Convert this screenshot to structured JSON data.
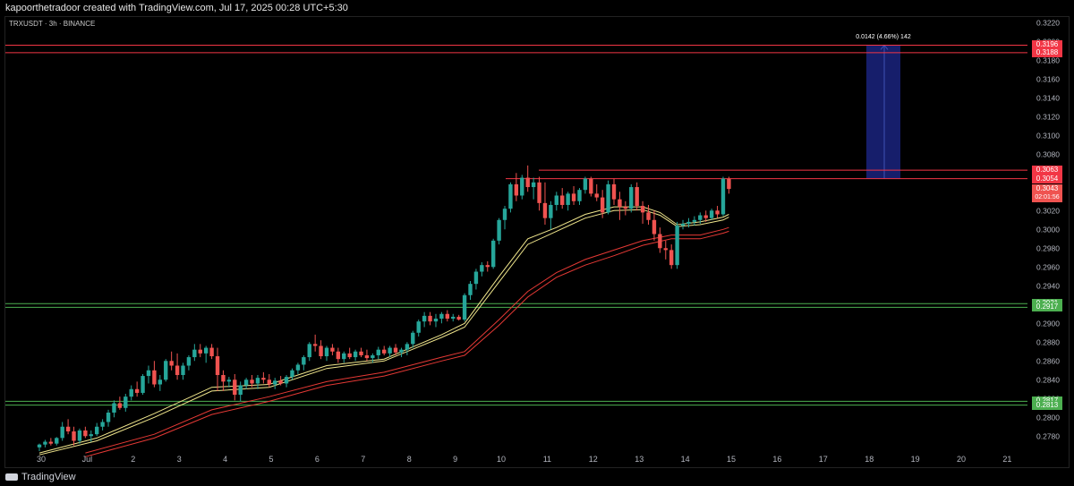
{
  "header": {
    "text": "kapoorthetradoor created with TradingView.com, Jul 17, 2025 00:28 UTC+5:30"
  },
  "symbol": {
    "text": "TRXUSDT · 3h · BINANCE"
  },
  "footer": {
    "logo_text": "TradingView"
  },
  "colors": {
    "up": "#26a69a",
    "down": "#ef5350",
    "resistance": "#f23645",
    "support": "#4caf50",
    "ema_fast": "#f0e68c",
    "ema_slow": "#e53935",
    "measure_fill": "#1a237e",
    "measure_line": "#3f51b5"
  },
  "chart_data": {
    "type": "candlestick",
    "title": "TRXUSDT · 3h · BINANCE",
    "ylim": [
      0.2765,
      0.3226
    ],
    "y_ticks": [
      "0.3220",
      "0.3200",
      "0.3180",
      "0.3160",
      "0.3140",
      "0.3120",
      "0.3100",
      "0.3080",
      "0.3060",
      "0.3040",
      "0.3020",
      "0.3000",
      "0.2980",
      "0.2960",
      "0.2940",
      "0.2920",
      "0.2900",
      "0.2880",
      "0.2860",
      "0.2840",
      "0.2820",
      "0.2800",
      "0.2780"
    ],
    "x_ticks": [
      "30",
      "Jul",
      "2",
      "3",
      "4",
      "5",
      "6",
      "7",
      "8",
      "9",
      "10",
      "11",
      "12",
      "13",
      "14",
      "15",
      "16",
      "17",
      "18",
      "19",
      "20",
      "21"
    ],
    "candles": [
      [
        0.2768,
        0.2772,
        0.2764,
        0.2771
      ],
      [
        0.2771,
        0.2776,
        0.2768,
        0.2774
      ],
      [
        0.2774,
        0.2778,
        0.277,
        0.2772
      ],
      [
        0.2772,
        0.2779,
        0.277,
        0.2778
      ],
      [
        0.2778,
        0.2795,
        0.2775,
        0.279
      ],
      [
        0.279,
        0.2798,
        0.2782,
        0.2785
      ],
      [
        0.2785,
        0.279,
        0.277,
        0.2775
      ],
      [
        0.2775,
        0.2788,
        0.2772,
        0.2786
      ],
      [
        0.2786,
        0.279,
        0.2778,
        0.278
      ],
      [
        0.278,
        0.2786,
        0.2774,
        0.2782
      ],
      [
        0.2782,
        0.2794,
        0.278,
        0.279
      ],
      [
        0.279,
        0.2798,
        0.2786,
        0.2795
      ],
      [
        0.2795,
        0.2808,
        0.279,
        0.2805
      ],
      [
        0.2805,
        0.2818,
        0.28,
        0.2815
      ],
      [
        0.2815,
        0.2822,
        0.2808,
        0.281
      ],
      [
        0.281,
        0.2825,
        0.2806,
        0.2822
      ],
      [
        0.2822,
        0.2834,
        0.2818,
        0.283
      ],
      [
        0.283,
        0.2838,
        0.2822,
        0.2826
      ],
      [
        0.2826,
        0.2846,
        0.2824,
        0.2844
      ],
      [
        0.2844,
        0.2855,
        0.2836,
        0.285
      ],
      [
        0.285,
        0.286,
        0.2832,
        0.2835
      ],
      [
        0.2835,
        0.2845,
        0.2828,
        0.284
      ],
      [
        0.284,
        0.2862,
        0.2838,
        0.286
      ],
      [
        0.286,
        0.287,
        0.285,
        0.2855
      ],
      [
        0.2855,
        0.2868,
        0.284,
        0.2845
      ],
      [
        0.2845,
        0.2858,
        0.284,
        0.2855
      ],
      [
        0.2855,
        0.2866,
        0.285,
        0.2864
      ],
      [
        0.2864,
        0.2878,
        0.286,
        0.2872
      ],
      [
        0.2872,
        0.2878,
        0.2864,
        0.2868
      ],
      [
        0.2868,
        0.2876,
        0.2858,
        0.2874
      ],
      [
        0.2874,
        0.2878,
        0.2862,
        0.2865
      ],
      [
        0.2865,
        0.2874,
        0.2828,
        0.2845
      ],
      [
        0.2845,
        0.285,
        0.2828,
        0.2838
      ],
      [
        0.2838,
        0.2843,
        0.2832,
        0.284
      ],
      [
        0.284,
        0.2846,
        0.2818,
        0.2824
      ],
      [
        0.2824,
        0.2838,
        0.2817,
        0.2834
      ],
      [
        0.2834,
        0.2842,
        0.283,
        0.284
      ],
      [
        0.284,
        0.2845,
        0.2832,
        0.2836
      ],
      [
        0.2836,
        0.2845,
        0.283,
        0.2842
      ],
      [
        0.2842,
        0.2848,
        0.2836,
        0.284
      ],
      [
        0.284,
        0.2846,
        0.2832,
        0.2835
      ],
      [
        0.2835,
        0.2842,
        0.283,
        0.2839
      ],
      [
        0.2839,
        0.2844,
        0.2834,
        0.2836
      ],
      [
        0.2836,
        0.2845,
        0.2832,
        0.2843
      ],
      [
        0.2843,
        0.2852,
        0.284,
        0.285
      ],
      [
        0.285,
        0.2858,
        0.2846,
        0.2856
      ],
      [
        0.2856,
        0.2866,
        0.285,
        0.2864
      ],
      [
        0.2864,
        0.288,
        0.286,
        0.2878
      ],
      [
        0.2878,
        0.2888,
        0.287,
        0.2876
      ],
      [
        0.2876,
        0.2882,
        0.2862,
        0.2865
      ],
      [
        0.2865,
        0.2876,
        0.286,
        0.2874
      ],
      [
        0.2874,
        0.2878,
        0.2866,
        0.287
      ],
      [
        0.287,
        0.2874,
        0.2858,
        0.2862
      ],
      [
        0.2862,
        0.287,
        0.2858,
        0.2868
      ],
      [
        0.2868,
        0.2874,
        0.2862,
        0.2864
      ],
      [
        0.2864,
        0.2872,
        0.286,
        0.287
      ],
      [
        0.287,
        0.2874,
        0.2864,
        0.2866
      ],
      [
        0.2866,
        0.2872,
        0.286,
        0.2863
      ],
      [
        0.2863,
        0.2868,
        0.2858,
        0.2866
      ],
      [
        0.2866,
        0.2875,
        0.2862,
        0.2872
      ],
      [
        0.2872,
        0.2876,
        0.2866,
        0.2868
      ],
      [
        0.2868,
        0.2876,
        0.2864,
        0.2874
      ],
      [
        0.2874,
        0.2878,
        0.2866,
        0.2869
      ],
      [
        0.2869,
        0.2874,
        0.2864,
        0.2872
      ],
      [
        0.2872,
        0.288,
        0.2866,
        0.2878
      ],
      [
        0.2878,
        0.2892,
        0.2874,
        0.289
      ],
      [
        0.289,
        0.2904,
        0.2886,
        0.2902
      ],
      [
        0.2902,
        0.2912,
        0.2896,
        0.2908
      ],
      [
        0.2908,
        0.2912,
        0.2898,
        0.2902
      ],
      [
        0.2902,
        0.291,
        0.2896,
        0.2905
      ],
      [
        0.2905,
        0.2912,
        0.29,
        0.291
      ],
      [
        0.291,
        0.2914,
        0.2902,
        0.2905
      ],
      [
        0.2905,
        0.291,
        0.2902,
        0.2907
      ],
      [
        0.2907,
        0.2909,
        0.2903,
        0.2904
      ],
      [
        0.2904,
        0.2932,
        0.2902,
        0.293
      ],
      [
        0.293,
        0.2945,
        0.2925,
        0.2942
      ],
      [
        0.2942,
        0.2958,
        0.2936,
        0.2955
      ],
      [
        0.2955,
        0.2965,
        0.295,
        0.2962
      ],
      [
        0.2962,
        0.2966,
        0.2955,
        0.296
      ],
      [
        0.296,
        0.299,
        0.2958,
        0.2988
      ],
      [
        0.2988,
        0.3012,
        0.2984,
        0.301
      ],
      [
        0.301,
        0.3025,
        0.3,
        0.3022
      ],
      [
        0.3022,
        0.305,
        0.3018,
        0.3048
      ],
      [
        0.3048,
        0.306,
        0.303,
        0.3036
      ],
      [
        0.3036,
        0.3058,
        0.3032,
        0.3055
      ],
      [
        0.3055,
        0.3068,
        0.304,
        0.3045
      ],
      [
        0.3045,
        0.3055,
        0.3032,
        0.305
      ],
      [
        0.305,
        0.3056,
        0.302,
        0.3028
      ],
      [
        0.3028,
        0.305,
        0.3005,
        0.3012
      ],
      [
        0.3012,
        0.303,
        0.3,
        0.3026
      ],
      [
        0.3026,
        0.304,
        0.302,
        0.3036
      ],
      [
        0.3036,
        0.3044,
        0.3022,
        0.3026
      ],
      [
        0.3026,
        0.304,
        0.302,
        0.3038
      ],
      [
        0.3038,
        0.3046,
        0.3026,
        0.303
      ],
      [
        0.303,
        0.3044,
        0.3026,
        0.3042
      ],
      [
        0.3042,
        0.3056,
        0.3038,
        0.3054
      ],
      [
        0.3054,
        0.3056,
        0.3035,
        0.3038
      ],
      [
        0.3038,
        0.3048,
        0.303,
        0.3034
      ],
      [
        0.3034,
        0.3042,
        0.3012,
        0.3018
      ],
      [
        0.3018,
        0.3052,
        0.3016,
        0.3048
      ],
      [
        0.3048,
        0.3054,
        0.3026,
        0.3032
      ],
      [
        0.3032,
        0.304,
        0.301,
        0.3024
      ],
      [
        0.3024,
        0.303,
        0.3015,
        0.3022
      ],
      [
        0.3022,
        0.3048,
        0.3018,
        0.3045
      ],
      [
        0.3045,
        0.305,
        0.302,
        0.3025
      ],
      [
        0.3025,
        0.303,
        0.3006,
        0.3018
      ],
      [
        0.3018,
        0.3026,
        0.3005,
        0.301
      ],
      [
        0.301,
        0.302,
        0.2988,
        0.2995
      ],
      [
        0.2995,
        0.3002,
        0.2975,
        0.298
      ],
      [
        0.298,
        0.2988,
        0.2968,
        0.2978
      ],
      [
        0.2978,
        0.2984,
        0.2958,
        0.2962
      ],
      [
        0.2962,
        0.3008,
        0.2958,
        0.3004
      ],
      [
        0.3004,
        0.301,
        0.3,
        0.3006
      ],
      [
        0.3006,
        0.3012,
        0.3002,
        0.3008
      ],
      [
        0.3008,
        0.3014,
        0.3004,
        0.301
      ],
      [
        0.301,
        0.3018,
        0.3006,
        0.3015
      ],
      [
        0.3015,
        0.302,
        0.3008,
        0.3012
      ],
      [
        0.3012,
        0.3022,
        0.301,
        0.302
      ],
      [
        0.302,
        0.3025,
        0.3012,
        0.3016
      ],
      [
        0.3016,
        0.3056,
        0.3014,
        0.3054
      ],
      [
        0.3054,
        0.3056,
        0.3038,
        0.3043
      ]
    ],
    "ema_fast": [
      [
        0,
        0.2762
      ],
      [
        10,
        0.2778
      ],
      [
        20,
        0.2804
      ],
      [
        30,
        0.2832
      ],
      [
        40,
        0.2835
      ],
      [
        50,
        0.2855
      ],
      [
        60,
        0.2862
      ],
      [
        70,
        0.2888
      ],
      [
        74,
        0.29
      ],
      [
        80,
        0.295
      ],
      [
        85,
        0.299
      ],
      [
        90,
        0.3002
      ],
      [
        95,
        0.3016
      ],
      [
        100,
        0.3024
      ],
      [
        105,
        0.3024
      ],
      [
        108,
        0.3018
      ],
      [
        111,
        0.3005
      ],
      [
        115,
        0.3008
      ],
      [
        119,
        0.3013
      ],
      [
        120,
        0.3016
      ]
    ],
    "ema_fast2": [
      [
        0,
        0.276
      ],
      [
        10,
        0.2775
      ],
      [
        20,
        0.28
      ],
      [
        30,
        0.2828
      ],
      [
        40,
        0.2832
      ],
      [
        50,
        0.2852
      ],
      [
        60,
        0.286
      ],
      [
        70,
        0.2885
      ],
      [
        74,
        0.2896
      ],
      [
        80,
        0.2944
      ],
      [
        85,
        0.2984
      ],
      [
        90,
        0.2998
      ],
      [
        95,
        0.3012
      ],
      [
        100,
        0.302
      ],
      [
        105,
        0.3021
      ],
      [
        108,
        0.3015
      ],
      [
        111,
        0.3003
      ],
      [
        115,
        0.3005
      ],
      [
        119,
        0.301
      ],
      [
        120,
        0.3013
      ]
    ],
    "ema_slow": [
      [
        8,
        0.2762
      ],
      [
        20,
        0.2782
      ],
      [
        30,
        0.2808
      ],
      [
        40,
        0.2822
      ],
      [
        50,
        0.2838
      ],
      [
        60,
        0.2848
      ],
      [
        70,
        0.2864
      ],
      [
        74,
        0.287
      ],
      [
        80,
        0.2904
      ],
      [
        85,
        0.2934
      ],
      [
        90,
        0.2954
      ],
      [
        95,
        0.2968
      ],
      [
        100,
        0.2978
      ],
      [
        105,
        0.2988
      ],
      [
        110,
        0.2994
      ],
      [
        115,
        0.2994
      ],
      [
        119,
        0.3
      ],
      [
        120,
        0.3002
      ]
    ],
    "ema_slow2": [
      [
        8,
        0.2758
      ],
      [
        20,
        0.2778
      ],
      [
        30,
        0.2803
      ],
      [
        40,
        0.2817
      ],
      [
        50,
        0.2834
      ],
      [
        60,
        0.2844
      ],
      [
        70,
        0.286
      ],
      [
        74,
        0.2866
      ],
      [
        80,
        0.2898
      ],
      [
        85,
        0.2928
      ],
      [
        90,
        0.2949
      ],
      [
        95,
        0.2962
      ],
      [
        100,
        0.2972
      ],
      [
        105,
        0.2983
      ],
      [
        110,
        0.299
      ],
      [
        115,
        0.299
      ],
      [
        119,
        0.2996
      ],
      [
        120,
        0.2998
      ]
    ],
    "resistance_zones": [
      {
        "top": 0.3196,
        "bottom": 0.3188,
        "top_label": "0.3196",
        "bottom_label": "0.3188",
        "x_start": 0
      },
      {
        "top": 0.3063,
        "bottom": 0.3054,
        "top_label": "0.3063",
        "bottom_label": "0.3054",
        "x_start": 84
      }
    ],
    "support_zones": [
      {
        "top": 0.2921,
        "bottom": 0.2917,
        "top_label": "0.2921",
        "bottom_label": "0.2917"
      },
      {
        "top": 0.2817,
        "bottom": 0.2813,
        "top_label": "0.2817",
        "bottom_label": "0.2813"
      }
    ],
    "last_price": {
      "value": 0.3043,
      "label": "0.3043",
      "countdown": "02:01:56"
    },
    "measure": {
      "from": 0.3054,
      "to": 0.3196,
      "label": "0.0142 (4.66%) 142"
    }
  }
}
